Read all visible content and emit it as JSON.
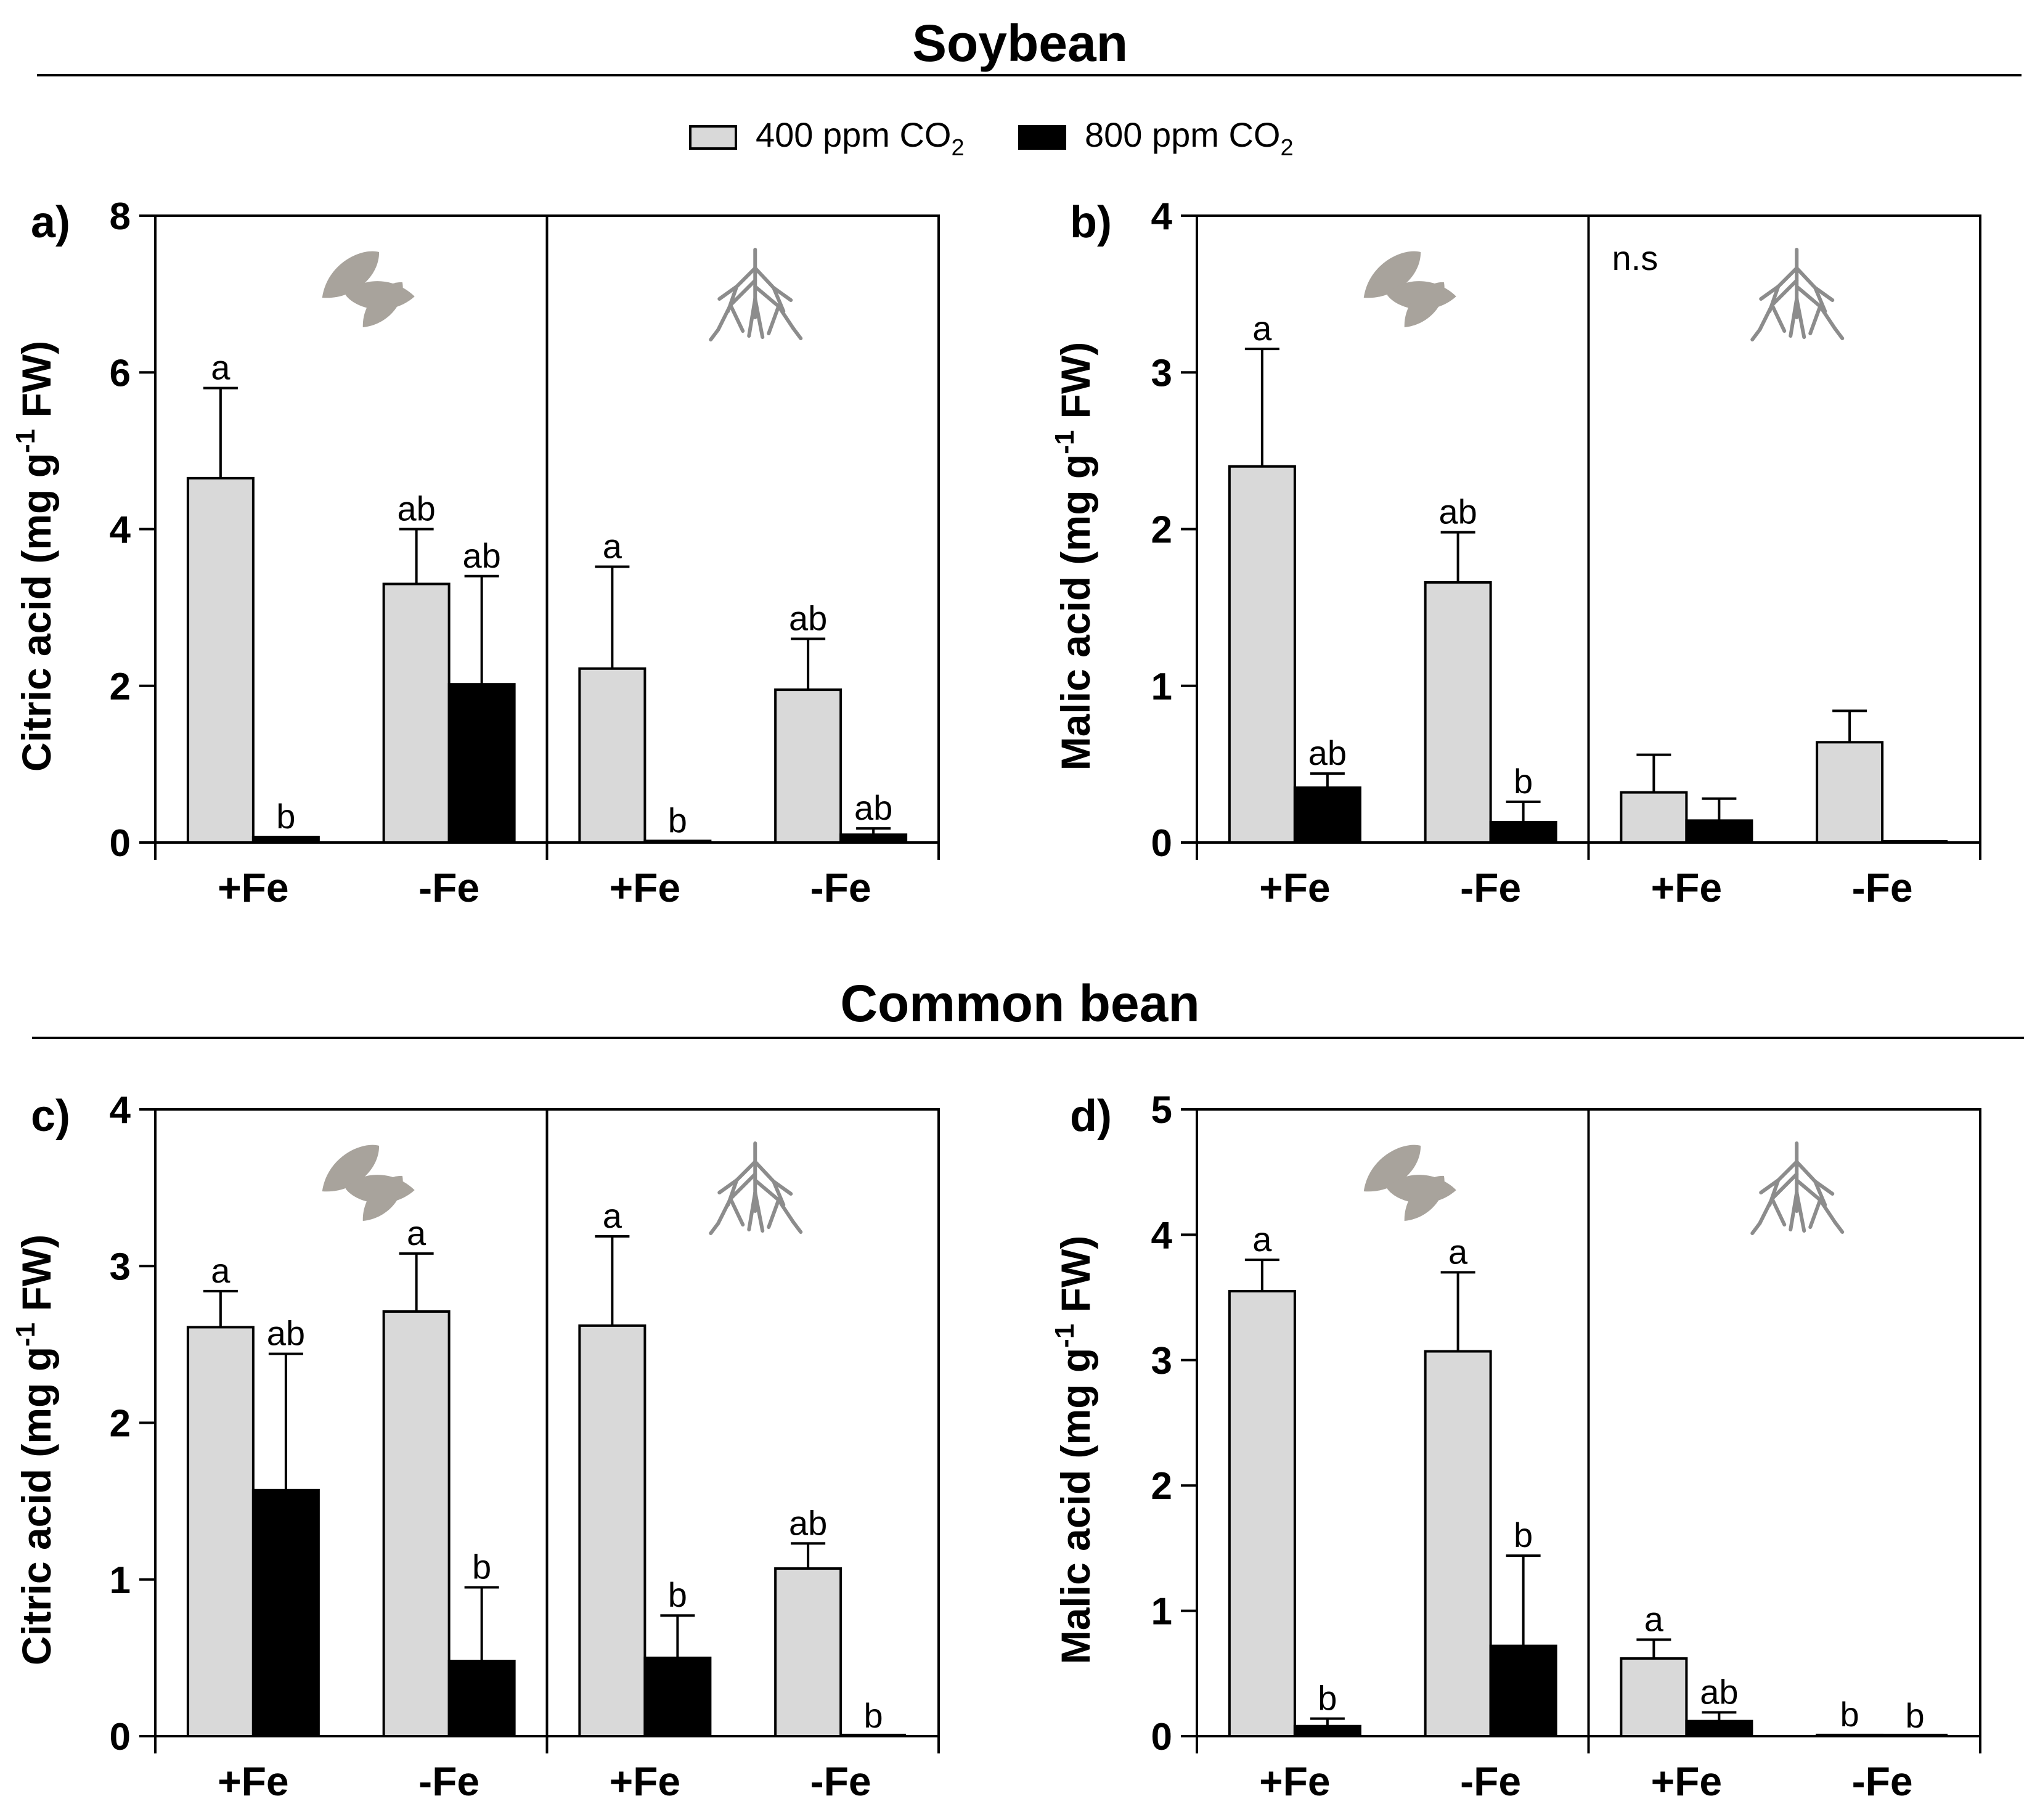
{
  "figure": {
    "sections": [
      {
        "title": "Soybean"
      },
      {
        "title": "Common bean"
      }
    ],
    "legend": [
      {
        "label_prefix": "400 ppm CO",
        "label_sub": "2",
        "color": "#d9d9d9"
      },
      {
        "label_prefix": "800 ppm CO",
        "label_sub": "2",
        "color": "#000000"
      }
    ],
    "colors": {
      "ambient": "#d9d9d9",
      "elevated": "#000000",
      "icon": "#a8a39c"
    }
  },
  "chart_data": [
    {
      "type": "bar",
      "panel_label": "a)",
      "ylabel": "Citric acid (mg g-1 FW)",
      "ylabel_parts": {
        "pre": "Citric acid (mg g",
        "sup": "-1",
        "post": " FW)"
      },
      "ylim": [
        0,
        8
      ],
      "yticks": [
        "0",
        "2",
        "4",
        "6",
        "8"
      ],
      "categories": [
        "+Fe",
        "-Fe",
        "+Fe",
        "-Fe"
      ],
      "groups": [
        {
          "tissue": "leaf",
          "icon": "leaves-icon",
          "note": ""
        },
        {
          "tissue": "root",
          "icon": "roots-icon",
          "note": ""
        }
      ],
      "series": [
        {
          "name": "400 ppm CO2",
          "values": [
            4.65,
            3.3,
            2.22,
            1.95
          ],
          "errors": [
            1.15,
            0.7,
            1.3,
            0.65
          ],
          "letters": [
            "a",
            "ab",
            "a",
            "ab"
          ]
        },
        {
          "name": "800 ppm CO2",
          "values": [
            0.07,
            2.02,
            0.02,
            0.1
          ],
          "errors": [
            0.0,
            1.38,
            0.0,
            0.08
          ],
          "letters": [
            "b",
            "ab",
            "b",
            "ab"
          ]
        }
      ]
    },
    {
      "type": "bar",
      "panel_label": "b)",
      "ylabel": "Malic acid (mg g-1 FW)",
      "ylabel_parts": {
        "pre": "Malic acid (mg g",
        "sup": "-1",
        "post": " FW)"
      },
      "ylim": [
        0,
        4
      ],
      "yticks": [
        "0",
        "1",
        "2",
        "3",
        "4"
      ],
      "categories": [
        "+Fe",
        "-Fe",
        "+Fe",
        "-Fe"
      ],
      "groups": [
        {
          "tissue": "leaf",
          "icon": "leaves-icon",
          "note": ""
        },
        {
          "tissue": "root",
          "icon": "roots-icon",
          "note": "n.s"
        }
      ],
      "series": [
        {
          "name": "400 ppm CO2",
          "values": [
            2.4,
            1.66,
            0.32,
            0.64
          ],
          "errors": [
            0.75,
            0.32,
            0.24,
            0.2
          ],
          "letters": [
            "a",
            "ab",
            "",
            ""
          ]
        },
        {
          "name": "800 ppm CO2",
          "values": [
            0.35,
            0.13,
            0.14,
            0.0
          ],
          "errors": [
            0.09,
            0.13,
            0.14,
            0.0
          ],
          "letters": [
            "ab",
            "b",
            "",
            ""
          ]
        }
      ]
    },
    {
      "type": "bar",
      "panel_label": "c)",
      "ylabel": "Citric acid (mg g-1 FW)",
      "ylabel_parts": {
        "pre": "Citric acid (mg g",
        "sup": "-1",
        "post": " FW)"
      },
      "ylim": [
        0,
        4
      ],
      "yticks": [
        "0",
        "1",
        "2",
        "3",
        "4"
      ],
      "categories": [
        "+Fe",
        "-Fe",
        "+Fe",
        "-Fe"
      ],
      "groups": [
        {
          "tissue": "leaf",
          "icon": "leaves-icon",
          "note": ""
        },
        {
          "tissue": "root",
          "icon": "roots-icon",
          "note": ""
        }
      ],
      "series": [
        {
          "name": "400 ppm CO2",
          "values": [
            2.61,
            2.71,
            2.62,
            1.07
          ],
          "errors": [
            0.23,
            0.37,
            0.57,
            0.16
          ],
          "letters": [
            "a",
            "a",
            "a",
            "ab"
          ]
        },
        {
          "name": "800 ppm CO2",
          "values": [
            1.57,
            0.48,
            0.5,
            0.0
          ],
          "errors": [
            0.87,
            0.47,
            0.27,
            0.0
          ],
          "letters": [
            "ab",
            "b",
            "b",
            "b"
          ]
        }
      ]
    },
    {
      "type": "bar",
      "panel_label": "d)",
      "ylabel": "Malic acid (mg g-1 FW)",
      "ylabel_parts": {
        "pre": "Malic acid (mg g",
        "sup": "-1",
        "post": " FW)"
      },
      "ylim": [
        0,
        5
      ],
      "yticks": [
        "0",
        "1",
        "2",
        "3",
        "4",
        "5"
      ],
      "categories": [
        "+Fe",
        "-Fe",
        "+Fe",
        "-Fe"
      ],
      "groups": [
        {
          "tissue": "leaf",
          "icon": "leaves-icon",
          "note": ""
        },
        {
          "tissue": "root",
          "icon": "roots-icon",
          "note": ""
        }
      ],
      "series": [
        {
          "name": "400 ppm CO2",
          "values": [
            3.55,
            3.07,
            0.62,
            0.01
          ],
          "errors": [
            0.25,
            0.63,
            0.15,
            0.0
          ],
          "letters": [
            "a",
            "a",
            "a",
            "b"
          ]
        },
        {
          "name": "800 ppm CO2",
          "values": [
            0.08,
            0.72,
            0.12,
            0.0
          ],
          "errors": [
            0.06,
            0.72,
            0.07,
            0.0
          ],
          "letters": [
            "b",
            "b",
            "ab",
            "b"
          ]
        }
      ]
    }
  ]
}
